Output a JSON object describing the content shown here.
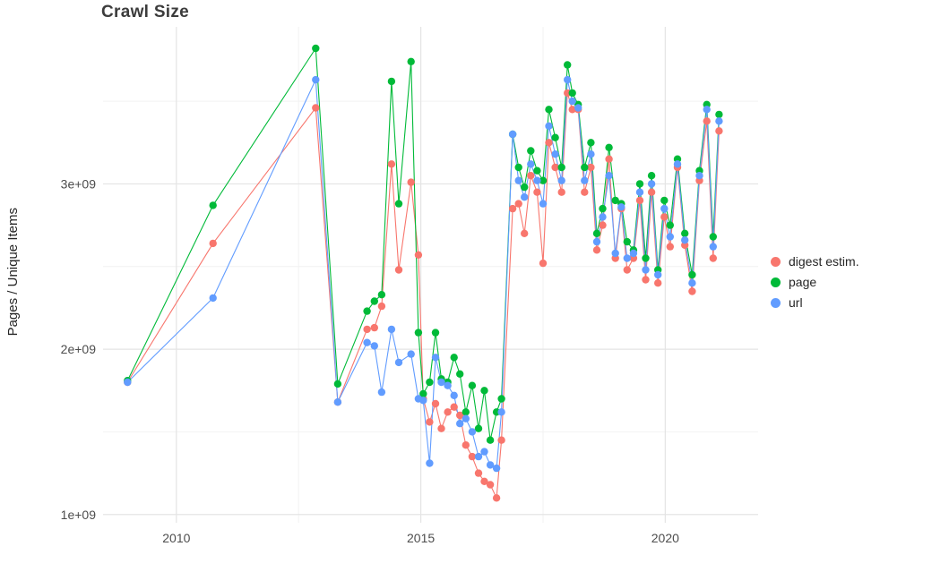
{
  "title": "Crawl Size",
  "y_axis_label": "Pages / Unique Items",
  "legend": {
    "items": [
      {
        "label": "digest estim.",
        "color": "#F8766D"
      },
      {
        "label": "page",
        "color": "#00BA38"
      },
      {
        "label": "url",
        "color": "#619CFF"
      }
    ]
  },
  "chart_data": {
    "type": "line",
    "title": "Crawl Size",
    "xlabel": "",
    "ylabel": "Pages / Unique Items",
    "x_unit": "decimal year",
    "y_unit": "items (billions, 1e+09)",
    "grid": true,
    "legend_position": "right",
    "xlim": [
      2008.5,
      2021.9
    ],
    "ylim_billions": [
      0.95,
      3.95
    ],
    "x_major_ticks": [
      2010,
      2015,
      2020
    ],
    "x_tick_labels": [
      "2010",
      "2015",
      "2020"
    ],
    "x_minor_ticks": [
      2012.5,
      2017.5
    ],
    "y_major_ticks_billions": [
      1,
      2,
      3
    ],
    "y_tick_labels": [
      "1e+09",
      "2e+09",
      "3e+09"
    ],
    "y_minor_ticks_billions": [
      1.5,
      2.5,
      3.5
    ],
    "x": [
      2009.0,
      2010.75,
      2012.85,
      2013.3,
      2013.9,
      2014.05,
      2014.2,
      2014.4,
      2014.55,
      2014.8,
      2014.95,
      2015.05,
      2015.18,
      2015.3,
      2015.42,
      2015.55,
      2015.68,
      2015.8,
      2015.92,
      2016.05,
      2016.18,
      2016.3,
      2016.42,
      2016.55,
      2016.65,
      2016.88,
      2017.0,
      2017.12,
      2017.25,
      2017.38,
      2017.5,
      2017.62,
      2017.75,
      2017.88,
      2018.0,
      2018.1,
      2018.22,
      2018.35,
      2018.48,
      2018.6,
      2018.72,
      2018.85,
      2018.98,
      2019.1,
      2019.22,
      2019.35,
      2019.48,
      2019.6,
      2019.72,
      2019.85,
      2019.98,
      2020.1,
      2020.25,
      2020.4,
      2020.55,
      2020.7,
      2020.85,
      2020.98,
      2021.1
    ],
    "series": [
      {
        "name": "digest estim.",
        "color": "#F8766D",
        "values_billions": [
          1.8,
          2.64,
          3.46,
          1.68,
          2.12,
          2.13,
          2.26,
          3.12,
          2.48,
          3.01,
          2.57,
          1.7,
          1.56,
          1.67,
          1.52,
          1.62,
          1.65,
          1.6,
          1.42,
          1.35,
          1.25,
          1.2,
          1.18,
          1.1,
          1.45,
          2.85,
          2.88,
          2.7,
          3.05,
          2.95,
          2.52,
          3.25,
          3.1,
          2.95,
          3.55,
          3.45,
          3.45,
          2.95,
          3.1,
          2.6,
          2.75,
          3.15,
          2.55,
          2.85,
          2.48,
          2.55,
          2.9,
          2.42,
          2.95,
          2.4,
          2.8,
          2.62,
          3.1,
          2.63,
          2.35,
          3.02,
          3.38,
          2.55,
          3.32
        ]
      },
      {
        "name": "page",
        "color": "#00BA38",
        "values_billions": [
          1.81,
          2.87,
          3.82,
          1.79,
          2.23,
          2.29,
          2.33,
          3.62,
          2.88,
          3.74,
          2.1,
          1.73,
          1.8,
          2.1,
          1.82,
          1.8,
          1.95,
          1.85,
          1.62,
          1.78,
          1.52,
          1.75,
          1.45,
          1.62,
          1.7,
          3.3,
          3.1,
          2.98,
          3.2,
          3.08,
          3.02,
          3.45,
          3.28,
          3.1,
          3.72,
          3.55,
          3.48,
          3.1,
          3.25,
          2.7,
          2.85,
          3.22,
          2.9,
          2.88,
          2.65,
          2.6,
          3.0,
          2.55,
          3.05,
          2.48,
          2.9,
          2.75,
          3.15,
          2.7,
          2.45,
          3.08,
          3.48,
          2.68,
          3.42
        ]
      },
      {
        "name": "url",
        "color": "#619CFF",
        "values_billions": [
          1.8,
          2.31,
          3.63,
          1.68,
          2.04,
          2.02,
          1.74,
          2.12,
          1.92,
          1.97,
          1.7,
          1.69,
          1.31,
          1.95,
          1.8,
          1.78,
          1.72,
          1.55,
          1.58,
          1.5,
          1.35,
          1.38,
          1.3,
          1.28,
          1.62,
          3.3,
          3.02,
          2.92,
          3.12,
          3.02,
          2.88,
          3.35,
          3.18,
          3.02,
          3.63,
          3.5,
          3.46,
          3.02,
          3.18,
          2.65,
          2.8,
          3.05,
          2.58,
          2.86,
          2.55,
          2.58,
          2.95,
          2.48,
          3.0,
          2.45,
          2.85,
          2.68,
          3.12,
          2.66,
          2.4,
          3.05,
          3.45,
          2.62,
          3.38
        ]
      }
    ]
  }
}
